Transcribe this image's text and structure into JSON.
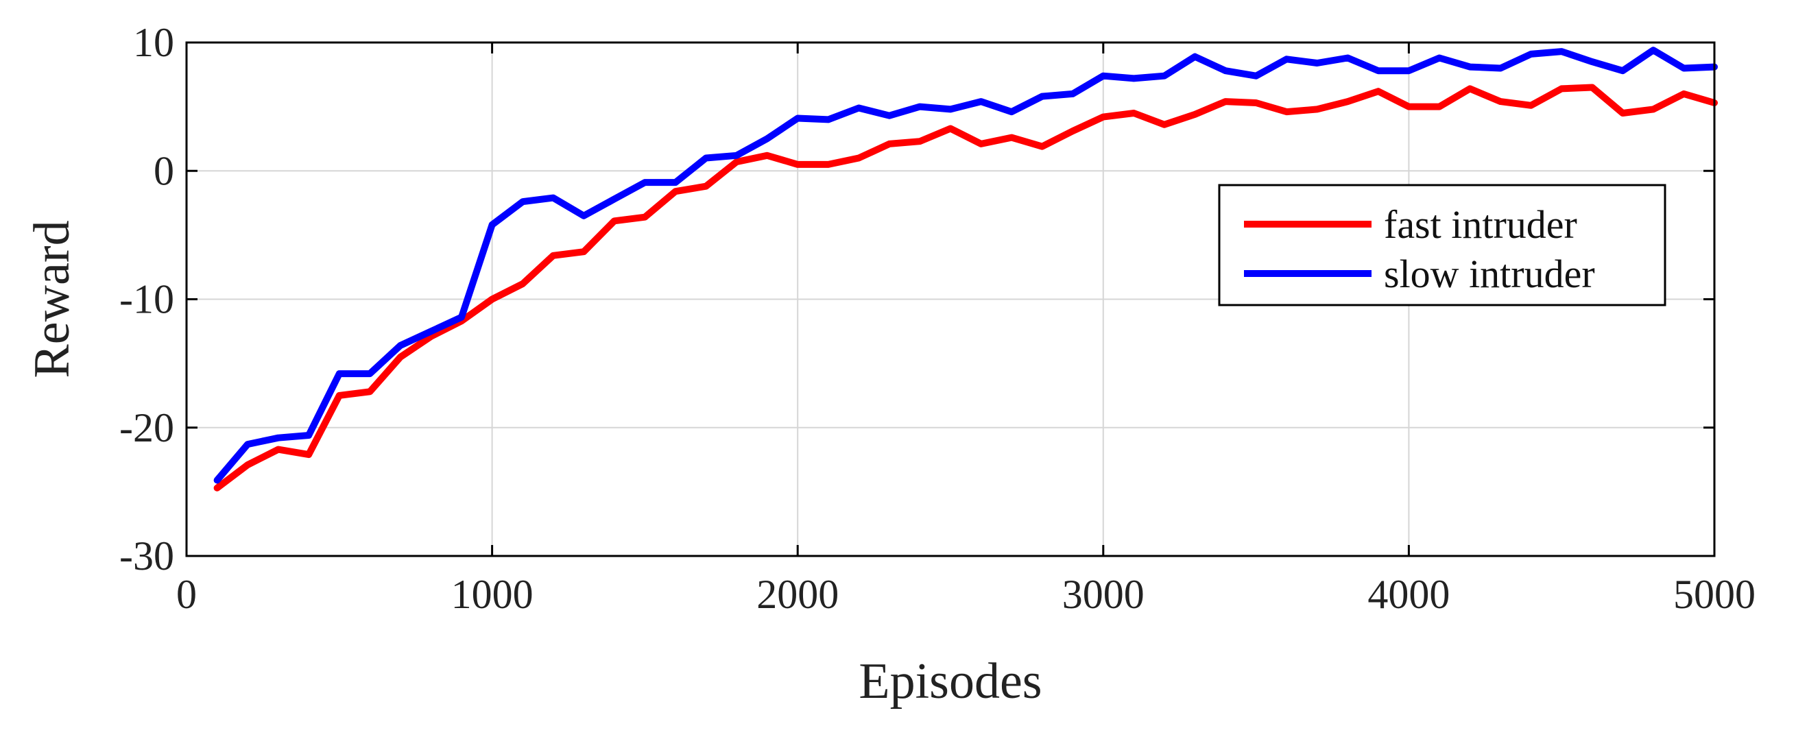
{
  "chart_data": {
    "type": "line",
    "title": "",
    "xlabel": "Episodes",
    "ylabel": "Reward",
    "xlim": [
      0,
      5000
    ],
    "ylim": [
      -30,
      10
    ],
    "xticks": [
      0,
      1000,
      2000,
      3000,
      4000,
      5000
    ],
    "yticks": [
      10,
      0,
      -10,
      -20,
      -30
    ],
    "xtick_labels": [
      "0",
      "1000",
      "2000",
      "3000",
      "4000",
      "5000"
    ],
    "ytick_labels": [
      "10",
      "0",
      "-10",
      "-20",
      "-30"
    ],
    "grid": true,
    "legend_position": "right",
    "x": [
      100,
      200,
      300,
      400,
      500,
      600,
      700,
      800,
      900,
      1000,
      1100,
      1200,
      1300,
      1400,
      1500,
      1600,
      1700,
      1800,
      1900,
      2000,
      2100,
      2200,
      2300,
      2400,
      2500,
      2600,
      2700,
      2800,
      2900,
      3000,
      3100,
      3200,
      3300,
      3400,
      3500,
      3600,
      3700,
      3800,
      3900,
      4000,
      4100,
      4200,
      4300,
      4400,
      4500,
      4600,
      4700,
      4800,
      4900,
      5000
    ],
    "series": [
      {
        "name": "fast intruder",
        "color": "#ff0000",
        "values": [
          -24.7,
          -22.9,
          -21.7,
          -22.1,
          -17.5,
          -17.2,
          -14.5,
          -12.9,
          -11.7,
          -10.0,
          -8.8,
          -6.6,
          -6.3,
          -3.9,
          -3.6,
          -1.6,
          -1.2,
          0.7,
          1.2,
          0.5,
          0.5,
          1.0,
          2.1,
          2.3,
          3.3,
          2.1,
          2.6,
          1.9,
          3.1,
          4.2,
          4.5,
          3.6,
          4.4,
          5.4,
          5.3,
          4.6,
          4.8,
          5.4,
          6.2,
          5.0,
          5.0,
          6.4,
          5.4,
          5.1,
          6.4,
          6.5,
          4.5,
          4.8,
          6.0,
          5.3
        ]
      },
      {
        "name": "slow intruder",
        "color": "#0000ff",
        "values": [
          -24.1,
          -21.3,
          -20.8,
          -20.6,
          -15.8,
          -15.8,
          -13.6,
          -12.5,
          -11.4,
          -4.2,
          -2.4,
          -2.1,
          -3.5,
          -2.2,
          -0.9,
          -0.9,
          1.0,
          1.2,
          2.5,
          4.1,
          4.0,
          4.9,
          4.3,
          5.0,
          4.8,
          5.4,
          4.6,
          5.8,
          6.0,
          7.4,
          7.2,
          7.4,
          8.9,
          7.8,
          7.4,
          8.7,
          8.4,
          8.8,
          7.8,
          7.8,
          8.8,
          8.1,
          8.0,
          9.1,
          9.3,
          8.5,
          7.8,
          9.4,
          8.0,
          8.1
        ]
      }
    ]
  }
}
